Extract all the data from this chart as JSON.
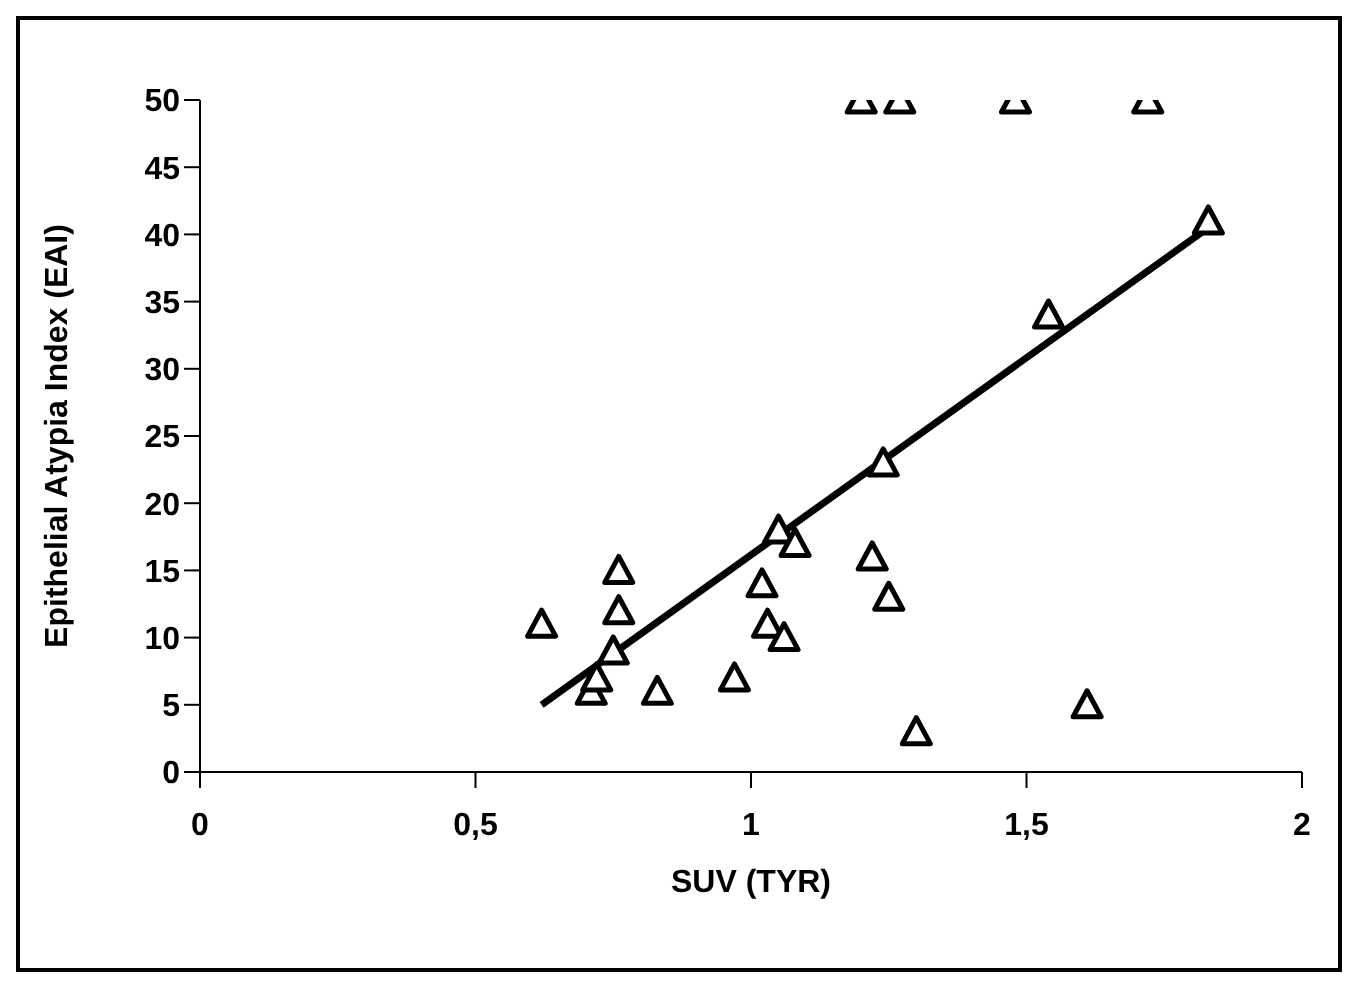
{
  "chart_data": {
    "type": "scatter",
    "xlabel": "SUV (TYR)",
    "ylabel": "Epithelial Atypia Index (EAI)",
    "marker": "triangle",
    "grid": false,
    "legend": false,
    "xlim": [
      0,
      2
    ],
    "xticks": [
      0,
      {
        "value": 0.5,
        "label": "0,5"
      },
      1,
      {
        "value": 1.5,
        "label": "1,5"
      },
      2
    ],
    "ylim": [
      0,
      50
    ],
    "yticks": [
      0,
      5,
      10,
      15,
      20,
      25,
      30,
      35,
      40,
      45,
      50
    ],
    "series": [
      {
        "color": "#000000",
        "x": [
          0.62,
          0.71,
          0.72,
          0.75,
          0.76,
          0.76,
          0.83,
          0.97,
          1.02,
          1.03,
          1.05,
          1.06,
          1.08,
          1.2,
          1.22,
          1.24,
          1.25,
          1.27,
          1.3,
          1.48,
          1.54,
          1.61,
          1.72,
          1.83
        ],
        "values": [
          11,
          6,
          7,
          9,
          12,
          15,
          6,
          7,
          14,
          11,
          18,
          10,
          17,
          50,
          16,
          23,
          13,
          50,
          3,
          50,
          34,
          5,
          50,
          41
        ]
      },
      {
        "type": "line",
        "color": "#000000",
        "marker": "none",
        "x": [
          0.62,
          1.83
        ],
        "values": [
          5,
          40.5
        ]
      }
    ]
  }
}
